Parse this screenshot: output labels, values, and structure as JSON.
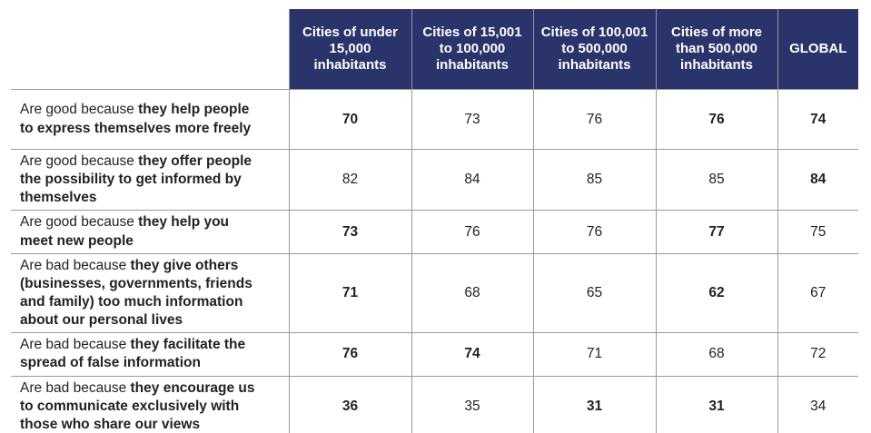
{
  "header": {
    "columns": [
      "Cities of under 15,000 inhabitants",
      "Cities of 15,001 to 100,000 inhabitants",
      "Cities of 100,001 to 500,000 inhabitants",
      "Cities of more than 500,000 inhabitants",
      "GLOBAL"
    ]
  },
  "rows": [
    {
      "label_prefix": "Are good because ",
      "label_bold": "they help people to express themselves more freely",
      "values": [
        "70",
        "73",
        "76",
        "76",
        "74"
      ],
      "bold": [
        true,
        false,
        false,
        true,
        true
      ]
    },
    {
      "label_prefix": "Are good because ",
      "label_bold": "they offer people the possibility to get informed by themselves",
      "values": [
        "82",
        "84",
        "85",
        "85",
        "84"
      ],
      "bold": [
        false,
        false,
        false,
        false,
        true
      ]
    },
    {
      "label_prefix": "Are good because ",
      "label_bold": "they help you meet new people",
      "values": [
        "73",
        "76",
        "76",
        "77",
        "75"
      ],
      "bold": [
        true,
        false,
        false,
        true,
        false
      ]
    },
    {
      "label_prefix": "Are bad because ",
      "label_bold": "they give others (businesses, governments, friends and family) too much information about our personal lives",
      "values": [
        "71",
        "68",
        "65",
        "62",
        "67"
      ],
      "bold": [
        true,
        false,
        false,
        true,
        false
      ]
    },
    {
      "label_prefix": "Are bad because ",
      "label_bold": "they facilitate the spread of false information",
      "values": [
        "76",
        "74",
        "71",
        "68",
        "72"
      ],
      "bold": [
        true,
        true,
        false,
        false,
        false
      ]
    },
    {
      "label_prefix": "Are bad because ",
      "label_bold": "they encourage us to communicate exclusively with those who share our views",
      "values": [
        "36",
        "35",
        "31",
        "31",
        "34"
      ],
      "bold": [
        true,
        false,
        true,
        true,
        false
      ]
    }
  ],
  "colors": {
    "header_bg": "#2b336b",
    "header_text": "#ffffff",
    "border": "#97999c",
    "body_text": "#212225"
  },
  "chart_data": {
    "type": "table",
    "columns": [
      "Cities of under 15,000 inhabitants",
      "Cities of 15,001 to 100,000 inhabitants",
      "Cities of 100,001 to 500,000 inhabitants",
      "Cities of more than 500,000 inhabitants",
      "GLOBAL"
    ],
    "rows": [
      {
        "label": "Are good because they help people to express themselves more freely",
        "values": [
          70,
          73,
          76,
          76,
          74
        ]
      },
      {
        "label": "Are good because they offer people the possibility to get informed by themselves",
        "values": [
          82,
          84,
          85,
          85,
          84
        ]
      },
      {
        "label": "Are good because they help you meet new people",
        "values": [
          73,
          76,
          76,
          77,
          75
        ]
      },
      {
        "label": "Are bad because they give others (businesses, governments, friends and family) too much information about our personal lives",
        "values": [
          71,
          68,
          65,
          62,
          67
        ]
      },
      {
        "label": "Are bad because they facilitate the spread of false information",
        "values": [
          76,
          74,
          71,
          68,
          72
        ]
      },
      {
        "label": "Are bad because they encourage us to communicate exclusively with those who share our views",
        "values": [
          36,
          35,
          31,
          31,
          34
        ]
      }
    ]
  }
}
